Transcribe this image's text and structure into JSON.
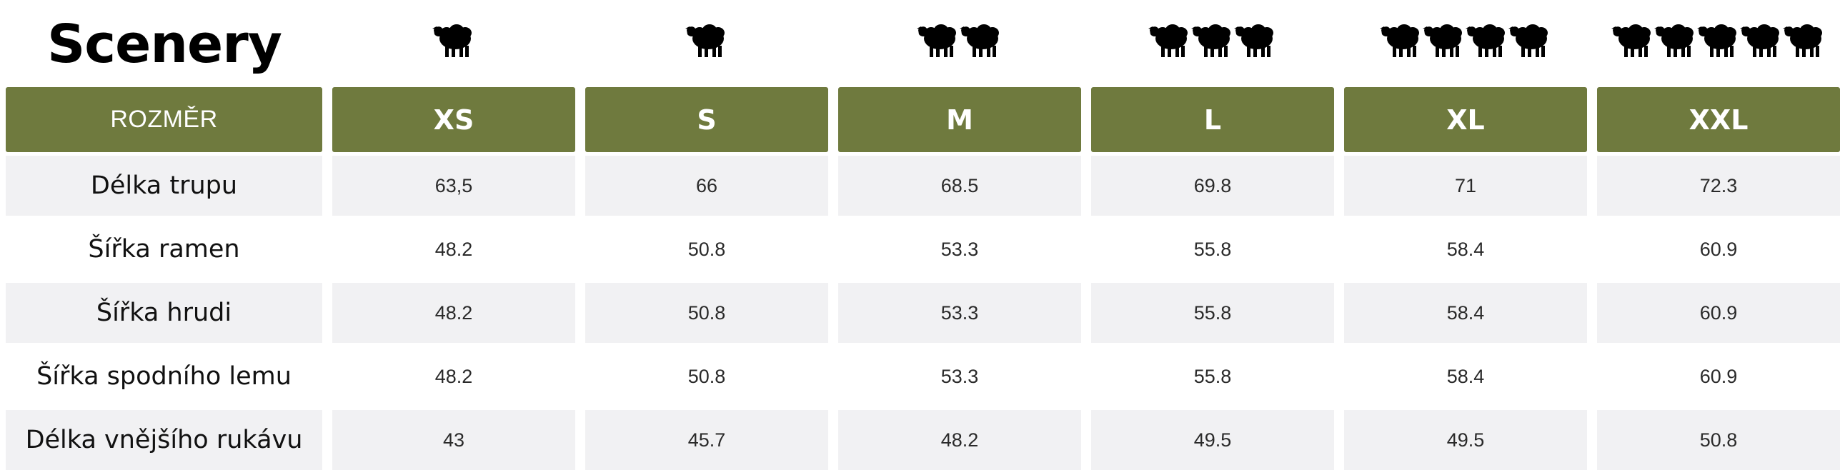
{
  "brand": "Scenery",
  "icons": {
    "name": "sheep-icon",
    "counts": [
      1,
      1,
      2,
      3,
      4,
      5
    ]
  },
  "table": {
    "header_label": "ROZMĚR",
    "sizes": [
      "XS",
      "S",
      "M",
      "L",
      "XL",
      "XXL"
    ],
    "rows": [
      {
        "label": "Délka trupu",
        "values": [
          "63,5",
          "66",
          "68.5",
          "69.8",
          "71",
          "72.3"
        ]
      },
      {
        "label": "Šířka ramen",
        "values": [
          "48.2",
          "50.8",
          "53.3",
          "55.8",
          "58.4",
          "60.9"
        ]
      },
      {
        "label": "Šířka hrudi",
        "values": [
          "48.2",
          "50.8",
          "53.3",
          "55.8",
          "58.4",
          "60.9"
        ]
      },
      {
        "label": "Šířka spodního lemu",
        "values": [
          "48.2",
          "50.8",
          "53.3",
          "55.8",
          "58.4",
          "60.9"
        ]
      },
      {
        "label": "Délka vnějšího rukávu",
        "values": [
          "43",
          "45.7",
          "48.2",
          "49.5",
          "49.5",
          "50.8"
        ]
      }
    ]
  },
  "colors": {
    "header_bg": "#6f7a3e",
    "header_text": "#ffffff",
    "row_shade": "#f1f1f3"
  }
}
